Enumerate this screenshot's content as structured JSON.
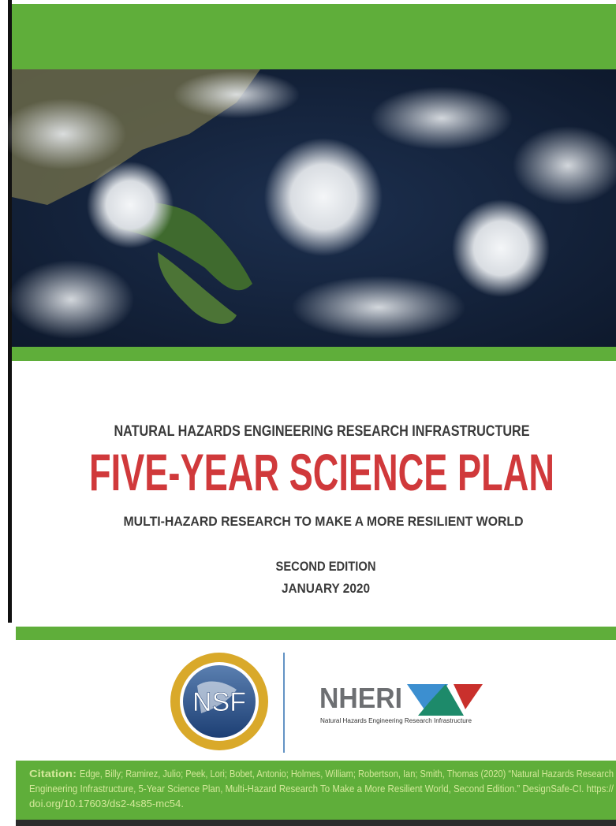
{
  "header": {
    "organization": "NATURAL HAZARDS ENGINEERING RESEARCH INFRASTRUCTURE",
    "title": "FIVE-YEAR SCIENCE PLAN",
    "subtitle": "MULTI-HAZARD RESEARCH TO MAKE A MORE RESILIENT WORLD",
    "edition": "SECOND EDITION",
    "date": "JANUARY 2020"
  },
  "logos": {
    "nsf": "NSF",
    "nheri": "NHERI",
    "nheri_tagline": "Natural Hazards Engineering Research Infrastructure"
  },
  "citation": {
    "label": "Citation:",
    "lines": [
      "Edge, Billy; Ramirez, Julio; Peek, Lori; Bobet, Antonio; Holmes, William; Robertson, Ian; Smith, Thomas (2020) “Natural Hazards Research",
      "Engineering Infrastructure, 5-Year Science Plan, Multi-Hazard Research To Make a More Resilient World, Second Edition.” DesignSafe-CI. https://",
      "doi.org/10.17603/ds2-4s85-mc54."
    ]
  }
}
